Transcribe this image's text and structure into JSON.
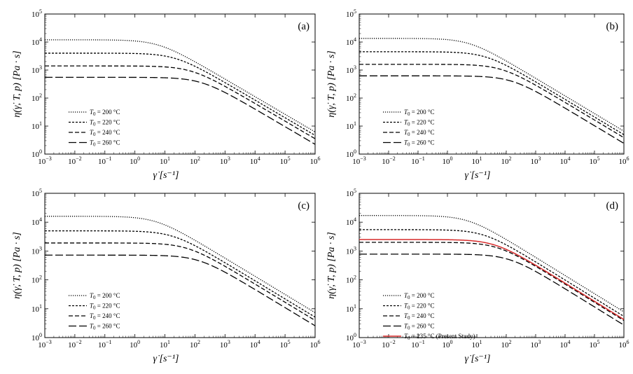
{
  "chart_data": [
    {
      "type": "line",
      "panel_label": "(a)",
      "xscale": "log",
      "yscale": "log",
      "xlim": [
        0.001,
        1000000
      ],
      "ylim": [
        1,
        100000
      ],
      "xlabel": "γ̇ [s⁻¹]",
      "ylabel": "η(γ̇, T, p) [Pa · s]",
      "x_tick_labels": [
        "10^-3",
        "10^-2",
        "10^-1",
        "10^0",
        "10^1",
        "10^2",
        "10^3",
        "10^4",
        "10^5",
        "10^6"
      ],
      "y_tick_labels": [
        "10^0",
        "10^1",
        "10^2",
        "10^3",
        "10^4",
        "10^5"
      ],
      "legend_position": "lower-left",
      "series": [
        {
          "name": "T0 = 200 °C",
          "eta0": 12000,
          "corner": 6,
          "n": 0.37,
          "style": "dotted",
          "color": "#000000"
        },
        {
          "name": "T0 = 220 °C",
          "eta0": 4000,
          "corner": 22,
          "n": 0.37,
          "style": "short-dash",
          "color": "#000000"
        },
        {
          "name": "T0 = 240 °C",
          "eta0": 1400,
          "corner": 75,
          "n": 0.37,
          "style": "medium-dash",
          "color": "#000000"
        },
        {
          "name": "T0 = 260 °C",
          "eta0": 550,
          "corner": 160,
          "n": 0.37,
          "style": "long-dash",
          "color": "#000000"
        }
      ]
    },
    {
      "type": "line",
      "panel_label": "(b)",
      "xscale": "log",
      "yscale": "log",
      "xlim": [
        0.001,
        1000000
      ],
      "ylim": [
        1,
        100000
      ],
      "xlabel": "γ̇ [s⁻¹]",
      "ylabel": "η(γ̇, T, p) [Pa · s]",
      "x_tick_labels": [
        "10^-3",
        "10^-2",
        "10^-1",
        "10^0",
        "10^1",
        "10^2",
        "10^3",
        "10^4",
        "10^5",
        "10^6"
      ],
      "y_tick_labels": [
        "10^0",
        "10^1",
        "10^2",
        "10^3",
        "10^4",
        "10^5"
      ],
      "legend_position": "lower-left",
      "series": [
        {
          "name": "T0 = 200 °C",
          "eta0": 13500,
          "corner": 5.5,
          "n": 0.37,
          "style": "dotted",
          "color": "#000000"
        },
        {
          "name": "T0 = 220 °C",
          "eta0": 4500,
          "corner": 20,
          "n": 0.37,
          "style": "short-dash",
          "color": "#000000"
        },
        {
          "name": "T0 = 240 °C",
          "eta0": 1600,
          "corner": 70,
          "n": 0.37,
          "style": "medium-dash",
          "color": "#000000"
        },
        {
          "name": "T0 = 260 °C",
          "eta0": 620,
          "corner": 150,
          "n": 0.37,
          "style": "long-dash",
          "color": "#000000"
        }
      ]
    },
    {
      "type": "line",
      "panel_label": "(c)",
      "xscale": "log",
      "yscale": "log",
      "xlim": [
        0.001,
        1000000
      ],
      "ylim": [
        1,
        100000
      ],
      "xlabel": "γ̇ [s⁻¹]",
      "ylabel": "η(γ̇, T, p) [Pa · s]",
      "x_tick_labels": [
        "10^-3",
        "10^-2",
        "10^-1",
        "10^0",
        "10^1",
        "10^2",
        "10^3",
        "10^4",
        "10^5",
        "10^6"
      ],
      "y_tick_labels": [
        "10^0",
        "10^1",
        "10^2",
        "10^3",
        "10^4",
        "10^5"
      ],
      "legend_position": "lower-left",
      "series": [
        {
          "name": "T0 = 200 °C",
          "eta0": 16000,
          "corner": 5,
          "n": 0.37,
          "style": "dotted",
          "color": "#000000"
        },
        {
          "name": "T0 = 220 °C",
          "eta0": 5000,
          "corner": 18,
          "n": 0.37,
          "style": "short-dash",
          "color": "#000000"
        },
        {
          "name": "T0 = 240 °C",
          "eta0": 1900,
          "corner": 55,
          "n": 0.37,
          "style": "medium-dash",
          "color": "#000000"
        },
        {
          "name": "T0 = 260 °C",
          "eta0": 720,
          "corner": 130,
          "n": 0.37,
          "style": "long-dash",
          "color": "#000000"
        }
      ]
    },
    {
      "type": "line",
      "panel_label": "(d)",
      "xscale": "log",
      "yscale": "log",
      "xlim": [
        0.001,
        1000000
      ],
      "ylim": [
        1,
        100000
      ],
      "xlabel": "γ̇ [s⁻¹]",
      "ylabel": "η(γ̇, T, p) [Pa · s]",
      "x_tick_labels": [
        "10^-3",
        "10^-2",
        "10^-1",
        "10^0",
        "10^1",
        "10^2",
        "10^3",
        "10^4",
        "10^5",
        "10^6"
      ],
      "y_tick_labels": [
        "10^0",
        "10^1",
        "10^2",
        "10^3",
        "10^4",
        "10^5"
      ],
      "legend_position": "lower-left",
      "series": [
        {
          "name": "T0 = 200 °C",
          "eta0": 17000,
          "corner": 5,
          "n": 0.37,
          "style": "dotted",
          "color": "#000000"
        },
        {
          "name": "T0 = 220 °C",
          "eta0": 5500,
          "corner": 17,
          "n": 0.37,
          "style": "short-dash",
          "color": "#000000"
        },
        {
          "name": "T0 = 240 °C",
          "eta0": 2000,
          "corner": 50,
          "n": 0.37,
          "style": "medium-dash",
          "color": "#000000"
        },
        {
          "name": "T0 = 260 °C",
          "eta0": 780,
          "corner": 125,
          "n": 0.37,
          "style": "long-dash",
          "color": "#000000"
        },
        {
          "name": "T0 = 235 °C (Present Study)",
          "eta0": 2500,
          "corner": 40,
          "n": 0.37,
          "style": "solid",
          "color": "#d62a2a"
        }
      ]
    }
  ]
}
